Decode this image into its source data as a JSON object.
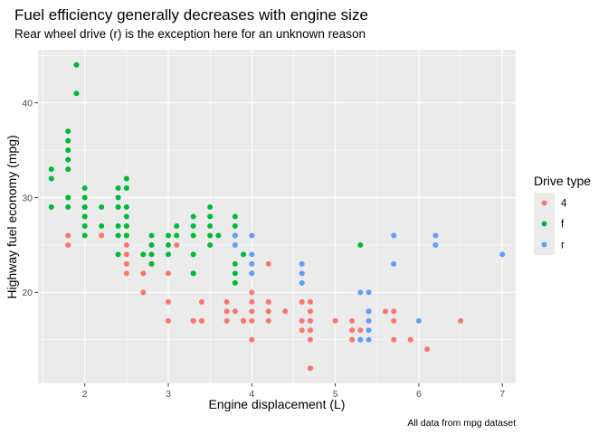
{
  "chart_data": {
    "type": "scatter",
    "title": "Fuel efficiency generally decreases with engine size",
    "subtitle": "Rear wheel drive (r) is the exception here for an unknown reason",
    "xlabel": "Engine displacement (L)",
    "ylabel": "Highway fuel economy (mpg)",
    "caption": "All data from mpg dataset",
    "xlim": [
      1.44,
      7.16
    ],
    "ylim": [
      10.4,
      45.6
    ],
    "x_ticks": [
      "2",
      "3",
      "4",
      "5",
      "6",
      "7"
    ],
    "x_tick_values": [
      2,
      3,
      4,
      5,
      6,
      7
    ],
    "y_ticks": [
      "20",
      "30",
      "40"
    ],
    "y_tick_values": [
      20,
      30,
      40
    ],
    "grid": true,
    "legend": {
      "title": "Drive type",
      "position": "right",
      "entries": [
        {
          "key": "4",
          "label": "4",
          "color": "#F8766D"
        },
        {
          "key": "f",
          "label": "f",
          "color": "#00BA38"
        },
        {
          "key": "r",
          "label": "r",
          "color": "#619CFF"
        }
      ]
    },
    "series": [
      {
        "key": "4",
        "color": "#F8766D",
        "points": [
          [
            1.8,
            26
          ],
          [
            1.8,
            25
          ],
          [
            2.0,
            28
          ],
          [
            2.0,
            27
          ],
          [
            2.2,
            26
          ],
          [
            2.5,
            27
          ],
          [
            2.5,
            25
          ],
          [
            2.5,
            26
          ],
          [
            2.5,
            24
          ],
          [
            2.5,
            23
          ],
          [
            2.5,
            22
          ],
          [
            2.7,
            22
          ],
          [
            2.7,
            20
          ],
          [
            2.7,
            20
          ],
          [
            2.8,
            25
          ],
          [
            2.8,
            24
          ],
          [
            2.8,
            23
          ],
          [
            3.0,
            22
          ],
          [
            3.0,
            19
          ],
          [
            3.0,
            17
          ],
          [
            3.1,
            25
          ],
          [
            3.3,
            17
          ],
          [
            3.3,
            17
          ],
          [
            3.4,
            19
          ],
          [
            3.4,
            17
          ],
          [
            3.4,
            17
          ],
          [
            3.7,
            19
          ],
          [
            3.7,
            18
          ],
          [
            3.7,
            17
          ],
          [
            3.8,
            18
          ],
          [
            3.9,
            17
          ],
          [
            3.9,
            17
          ],
          [
            4.0,
            20
          ],
          [
            4.0,
            19
          ],
          [
            4.0,
            18
          ],
          [
            4.0,
            17
          ],
          [
            4.0,
            15
          ],
          [
            4.2,
            23
          ],
          [
            4.2,
            19
          ],
          [
            4.2,
            18
          ],
          [
            4.2,
            17
          ],
          [
            4.4,
            18
          ],
          [
            4.6,
            19
          ],
          [
            4.6,
            17
          ],
          [
            4.6,
            16
          ],
          [
            4.7,
            19
          ],
          [
            4.7,
            18
          ],
          [
            4.7,
            17
          ],
          [
            4.7,
            17
          ],
          [
            4.7,
            16
          ],
          [
            4.7,
            15
          ],
          [
            4.7,
            12
          ],
          [
            4.7,
            12
          ],
          [
            5.0,
            17
          ],
          [
            5.2,
            17
          ],
          [
            5.2,
            16
          ],
          [
            5.2,
            15
          ],
          [
            5.3,
            16
          ],
          [
            5.3,
            15
          ],
          [
            5.4,
            17
          ],
          [
            5.4,
            18
          ],
          [
            5.6,
            18
          ],
          [
            5.7,
            18
          ],
          [
            5.7,
            17
          ],
          [
            5.7,
            15
          ],
          [
            5.9,
            15
          ],
          [
            6.1,
            14
          ],
          [
            6.5,
            17
          ]
        ]
      },
      {
        "key": "f",
        "color": "#00BA38",
        "points": [
          [
            1.6,
            33
          ],
          [
            1.6,
            32
          ],
          [
            1.6,
            29
          ],
          [
            1.8,
            37
          ],
          [
            1.8,
            36
          ],
          [
            1.8,
            35
          ],
          [
            1.8,
            34
          ],
          [
            1.8,
            33
          ],
          [
            1.8,
            30
          ],
          [
            1.8,
            29
          ],
          [
            1.9,
            44
          ],
          [
            1.9,
            44
          ],
          [
            1.9,
            41
          ],
          [
            2.0,
            31
          ],
          [
            2.0,
            30
          ],
          [
            2.0,
            29
          ],
          [
            2.0,
            28
          ],
          [
            2.0,
            27
          ],
          [
            2.0,
            26
          ],
          [
            2.0,
            29
          ],
          [
            2.2,
            29
          ],
          [
            2.2,
            27
          ],
          [
            2.4,
            31
          ],
          [
            2.4,
            30
          ],
          [
            2.4,
            29
          ],
          [
            2.4,
            27
          ],
          [
            2.4,
            26
          ],
          [
            2.4,
            24
          ],
          [
            2.5,
            32
          ],
          [
            2.5,
            31
          ],
          [
            2.5,
            29
          ],
          [
            2.5,
            28
          ],
          [
            2.5,
            27
          ],
          [
            2.5,
            26
          ],
          [
            2.7,
            24
          ],
          [
            2.8,
            26
          ],
          [
            2.8,
            25
          ],
          [
            2.8,
            24
          ],
          [
            2.8,
            23
          ],
          [
            3.0,
            26
          ],
          [
            3.0,
            25
          ],
          [
            3.0,
            24
          ],
          [
            3.1,
            27
          ],
          [
            3.1,
            26
          ],
          [
            3.3,
            28
          ],
          [
            3.3,
            27
          ],
          [
            3.3,
            26
          ],
          [
            3.3,
            24
          ],
          [
            3.3,
            22
          ],
          [
            3.3,
            22
          ],
          [
            3.5,
            29
          ],
          [
            3.5,
            28
          ],
          [
            3.5,
            27
          ],
          [
            3.5,
            26
          ],
          [
            3.5,
            25
          ],
          [
            3.6,
            26
          ],
          [
            3.8,
            28
          ],
          [
            3.8,
            27
          ],
          [
            3.8,
            26
          ],
          [
            3.8,
            23
          ],
          [
            3.8,
            22
          ],
          [
            3.8,
            21
          ],
          [
            3.9,
            24
          ],
          [
            4.0,
            22
          ],
          [
            5.3,
            25
          ]
        ]
      },
      {
        "key": "r",
        "color": "#619CFF",
        "points": [
          [
            3.8,
            26
          ],
          [
            3.8,
            25
          ],
          [
            4.0,
            26
          ],
          [
            4.0,
            24
          ],
          [
            4.0,
            23
          ],
          [
            4.0,
            22
          ],
          [
            4.6,
            23
          ],
          [
            4.6,
            22
          ],
          [
            4.6,
            21
          ],
          [
            5.3,
            20
          ],
          [
            5.3,
            15
          ],
          [
            5.4,
            20
          ],
          [
            5.4,
            18
          ],
          [
            5.4,
            17
          ],
          [
            5.4,
            16
          ],
          [
            5.4,
            15
          ],
          [
            5.7,
            26
          ],
          [
            5.7,
            23
          ],
          [
            6.0,
            17
          ],
          [
            6.2,
            26
          ],
          [
            6.2,
            25
          ],
          [
            7.0,
            24
          ]
        ]
      }
    ]
  }
}
